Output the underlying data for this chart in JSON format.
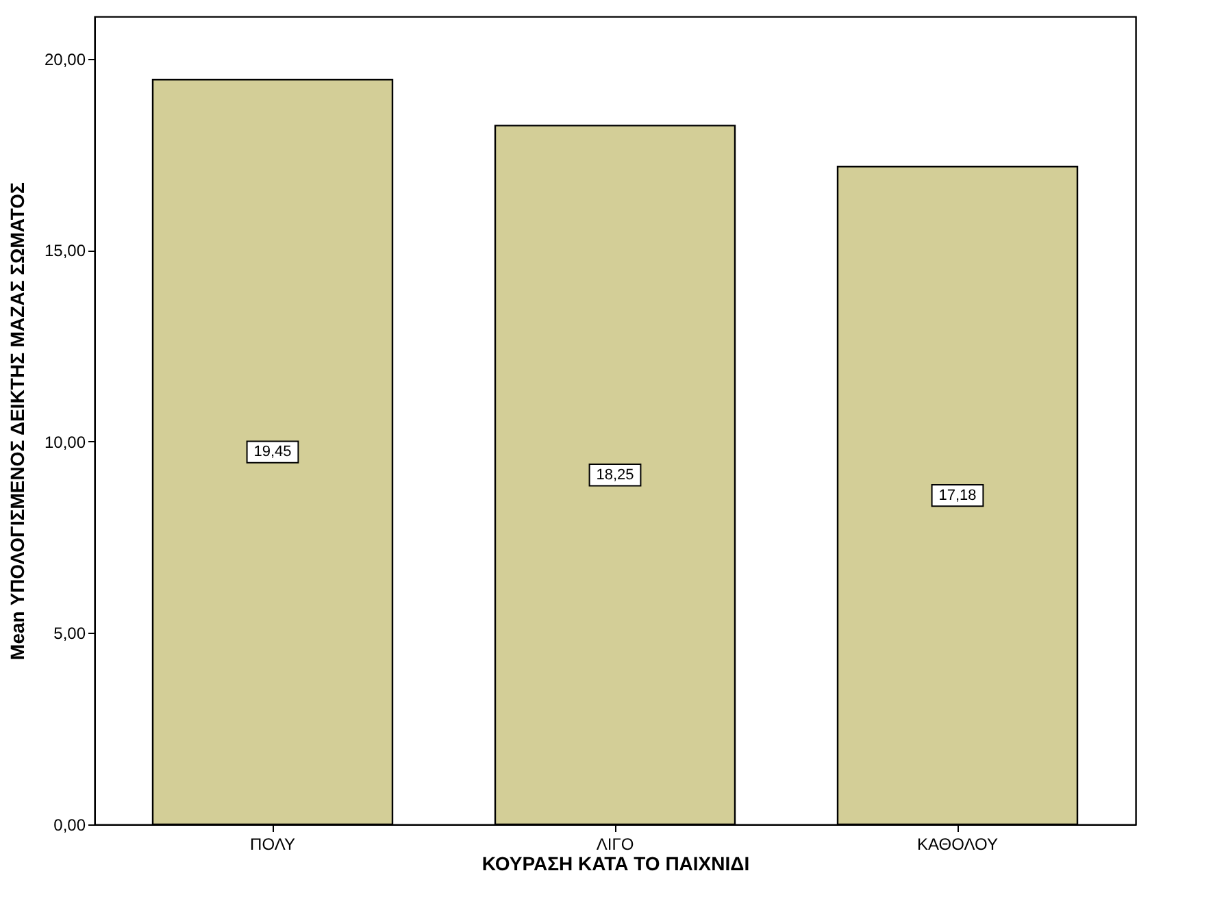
{
  "chart_data": {
    "type": "bar",
    "categories": [
      "ΠΟΛΥ",
      "ΛΙΓΟ",
      "ΚΑΘΟΛΟΥ"
    ],
    "values": [
      19.45,
      18.25,
      17.18
    ],
    "value_labels": [
      "19,45",
      "18,25",
      "17,18"
    ],
    "color": "#d3ce97",
    "xlabel": "ΚΟΥΡΑΣΗ ΚΑΤΑ ΤΟ ΠΑΙΧΝΙΔΙ",
    "ylabel": "Mean ΥΠΟΛΟΓΙΣΜΕΝΟΣ ΔΕΙΚΤΗΣ ΜΑΖΑΣ ΣΩΜΑΤΟΣ",
    "ylim": [
      0,
      21.1
    ],
    "yticks": [
      {
        "value": 0,
        "label": "0,00"
      },
      {
        "value": 5,
        "label": "5,00"
      },
      {
        "value": 10,
        "label": "10,00"
      },
      {
        "value": 15,
        "label": "15,00"
      },
      {
        "value": 20,
        "label": "20,00"
      }
    ],
    "grid": false
  }
}
